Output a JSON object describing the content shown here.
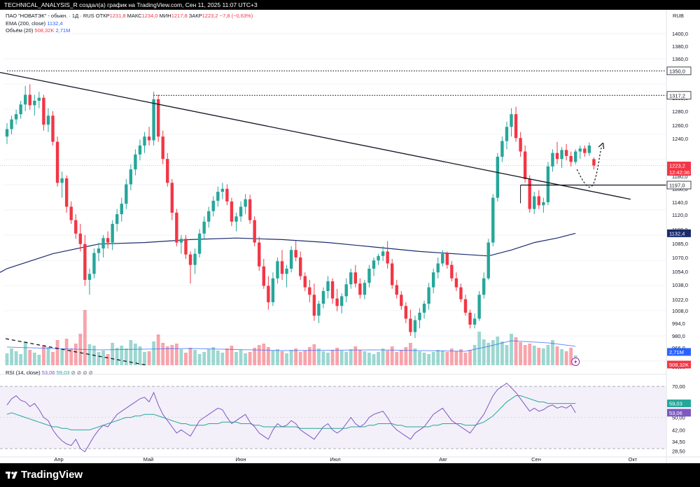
{
  "topbar": "TECHNICAL_ANALYSIS_R создал(а) график на TradingView.com, Сен 11, 2025 11:07 UTC+3",
  "legend": {
    "symbol": "ПАО \"НОВАТЭК\" - обыкн. · 1Д · RUS",
    "open_label": "ОТКР",
    "open": "1231,8",
    "high_label": "МАКС",
    "high": "1234,0",
    "low_label": "МИН",
    "low": "1217,8",
    "close_label": "ЗАКР",
    "close": "1223,2",
    "change": "−7,8 (−0,63%)",
    "ema_label": "EMA (200, close)",
    "ema_value": "1132,4",
    "vol_label": "Объём (20)",
    "vol_value": "508,32K",
    "vol_ma": "2,71M"
  },
  "rsi_legend": {
    "label": "RSI (14, close)",
    "rsi": "53,06",
    "rsi_ma": "59,03"
  },
  "currency": "RUB",
  "footer_brand": "TradingView",
  "colors": {
    "up": "#26a69a",
    "down": "#f23645",
    "ema": "#1a2c6e",
    "rsi": "#7e57c2",
    "rsi_ma": "#26a69a",
    "trend": "#131722"
  },
  "chart_data": {
    "type": "candlestick",
    "price_axis_ticks": [
      "1400,0",
      "1380,0",
      "1360,0",
      "1340,0",
      "1300,0",
      "1280,0",
      "1260,0",
      "1240,0",
      "1200,0",
      "1180,0",
      "1160,0",
      "1140,0",
      "1120,0",
      "1100,0",
      "1085,0",
      "1070,0",
      "1054,0",
      "1038,0",
      "1022,0",
      "1008,0",
      "994,0",
      "980,0",
      "966,0",
      "90,00"
    ],
    "price_labels": [
      {
        "text": "1350,0",
        "kind": "dotted-level"
      },
      {
        "text": "1317,2",
        "kind": "dotted-level"
      },
      {
        "text": "1223,2",
        "sub": "12:42:36",
        "kind": "last-price"
      },
      {
        "text": "1197,0",
        "kind": "support-level"
      },
      {
        "text": "1132,4",
        "kind": "ema"
      },
      {
        "text": "2,71M",
        "kind": "volume-ma"
      },
      {
        "text": "508,32K",
        "kind": "volume"
      }
    ],
    "rsi_axis_ticks": [
      "70,00",
      "50,00",
      "42,00",
      "34,50",
      "28,50"
    ],
    "rsi_labels": [
      {
        "text": "59,03",
        "kind": "rsi-ma"
      },
      {
        "text": "53,06",
        "kind": "rsi"
      }
    ],
    "x_ticks": [
      "Апр",
      "Май",
      "Июн",
      "Июл",
      "Авг",
      "Сен",
      "Окт"
    ],
    "candles": [
      [
        1262,
        1280,
        1252,
        1272
      ],
      [
        1272,
        1290,
        1265,
        1285
      ],
      [
        1285,
        1298,
        1278,
        1292
      ],
      [
        1292,
        1310,
        1286,
        1305
      ],
      [
        1305,
        1330,
        1296,
        1318
      ],
      [
        1318,
        1332,
        1298,
        1304
      ],
      [
        1304,
        1318,
        1290,
        1310
      ],
      [
        1310,
        1322,
        1300,
        1314
      ],
      [
        1314,
        1318,
        1270,
        1278
      ],
      [
        1278,
        1300,
        1268,
        1290
      ],
      [
        1290,
        1296,
        1250,
        1255
      ],
      [
        1255,
        1262,
        1195,
        1200
      ],
      [
        1200,
        1215,
        1180,
        1206
      ],
      [
        1206,
        1210,
        1160,
        1168
      ],
      [
        1168,
        1175,
        1145,
        1150
      ],
      [
        1150,
        1158,
        1125,
        1132
      ],
      [
        1132,
        1145,
        1108,
        1118
      ],
      [
        1118,
        1130,
        1062,
        1070
      ],
      [
        1070,
        1085,
        1050,
        1078
      ],
      [
        1078,
        1112,
        1072,
        1106
      ],
      [
        1106,
        1120,
        1095,
        1112
      ],
      [
        1112,
        1130,
        1100,
        1126
      ],
      [
        1126,
        1135,
        1112,
        1120
      ],
      [
        1120,
        1150,
        1110,
        1145
      ],
      [
        1145,
        1165,
        1135,
        1158
      ],
      [
        1158,
        1180,
        1148,
        1172
      ],
      [
        1172,
        1205,
        1165,
        1198
      ],
      [
        1198,
        1225,
        1190,
        1218
      ],
      [
        1218,
        1245,
        1210,
        1238
      ],
      [
        1238,
        1258,
        1230,
        1250
      ],
      [
        1250,
        1268,
        1240,
        1262
      ],
      [
        1262,
        1275,
        1250,
        1257
      ],
      [
        1257,
        1322,
        1250,
        1312
      ],
      [
        1312,
        1318,
        1255,
        1262
      ],
      [
        1262,
        1270,
        1225,
        1232
      ],
      [
        1232,
        1240,
        1195,
        1200
      ],
      [
        1200,
        1205,
        1150,
        1160
      ],
      [
        1160,
        1165,
        1115,
        1120
      ],
      [
        1120,
        1130,
        1105,
        1125
      ],
      [
        1125,
        1130,
        1098,
        1104
      ],
      [
        1104,
        1108,
        1065,
        1090
      ],
      [
        1090,
        1112,
        1078,
        1105
      ],
      [
        1105,
        1138,
        1100,
        1132
      ],
      [
        1132,
        1155,
        1125,
        1148
      ],
      [
        1148,
        1168,
        1140,
        1162
      ],
      [
        1162,
        1182,
        1155,
        1176
      ],
      [
        1176,
        1195,
        1168,
        1188
      ],
      [
        1188,
        1200,
        1178,
        1192
      ],
      [
        1192,
        1198,
        1170,
        1175
      ],
      [
        1175,
        1180,
        1142,
        1148
      ],
      [
        1148,
        1160,
        1135,
        1155
      ],
      [
        1155,
        1175,
        1148,
        1168
      ],
      [
        1168,
        1185,
        1158,
        1178
      ],
      [
        1178,
        1184,
        1145,
        1150
      ],
      [
        1150,
        1155,
        1115,
        1120
      ],
      [
        1120,
        1128,
        1082,
        1088
      ],
      [
        1088,
        1098,
        1058,
        1062
      ],
      [
        1062,
        1075,
        1030,
        1040
      ],
      [
        1040,
        1080,
        1035,
        1072
      ],
      [
        1072,
        1100,
        1065,
        1095
      ],
      [
        1095,
        1110,
        1070,
        1078
      ],
      [
        1078,
        1090,
        1060,
        1085
      ],
      [
        1085,
        1115,
        1080,
        1110
      ],
      [
        1110,
        1122,
        1095,
        1100
      ],
      [
        1100,
        1108,
        1070,
        1075
      ],
      [
        1075,
        1080,
        1055,
        1060
      ],
      [
        1060,
        1070,
        1040,
        1050
      ],
      [
        1050,
        1065,
        1015,
        1022
      ],
      [
        1022,
        1042,
        1012,
        1038
      ],
      [
        1038,
        1060,
        1032,
        1055
      ],
      [
        1055,
        1075,
        1045,
        1068
      ],
      [
        1068,
        1072,
        1038,
        1045
      ],
      [
        1045,
        1058,
        1028,
        1035
      ],
      [
        1035,
        1052,
        1025,
        1048
      ],
      [
        1048,
        1072,
        1040,
        1064
      ],
      [
        1064,
        1085,
        1058,
        1080
      ],
      [
        1080,
        1090,
        1060,
        1065
      ],
      [
        1065,
        1072,
        1045,
        1050
      ],
      [
        1050,
        1070,
        1044,
        1066
      ],
      [
        1066,
        1090,
        1060,
        1085
      ],
      [
        1085,
        1100,
        1075,
        1096
      ],
      [
        1096,
        1105,
        1090,
        1102
      ],
      [
        1102,
        1115,
        1095,
        1108
      ],
      [
        1108,
        1122,
        1085,
        1092
      ],
      [
        1092,
        1098,
        1058,
        1063
      ],
      [
        1063,
        1070,
        1045,
        1050
      ],
      [
        1050,
        1055,
        1030,
        1035
      ],
      [
        1035,
        1040,
        1012,
        1018
      ],
      [
        1018,
        1030,
        995,
        1000
      ],
      [
        1000,
        1022,
        992,
        1016
      ],
      [
        1016,
        1032,
        1005,
        1026
      ],
      [
        1026,
        1042,
        1018,
        1038
      ],
      [
        1038,
        1066,
        1030,
        1060
      ],
      [
        1060,
        1085,
        1052,
        1080
      ],
      [
        1080,
        1100,
        1072,
        1092
      ],
      [
        1092,
        1110,
        1088,
        1105
      ],
      [
        1105,
        1108,
        1085,
        1090
      ],
      [
        1090,
        1095,
        1068,
        1072
      ],
      [
        1072,
        1080,
        1055,
        1060
      ],
      [
        1060,
        1065,
        1040,
        1044
      ],
      [
        1044,
        1050,
        1022,
        1026
      ],
      [
        1026,
        1030,
        1005,
        1010
      ],
      [
        1010,
        1025,
        1005,
        1018
      ],
      [
        1018,
        1055,
        1015,
        1050
      ],
      [
        1050,
        1080,
        1045,
        1072
      ],
      [
        1072,
        1125,
        1070,
        1120
      ],
      [
        1120,
        1185,
        1115,
        1180
      ],
      [
        1180,
        1240,
        1175,
        1235
      ],
      [
        1235,
        1262,
        1228,
        1256
      ],
      [
        1256,
        1282,
        1245,
        1275
      ],
      [
        1275,
        1300,
        1262,
        1292
      ],
      [
        1292,
        1302,
        1255,
        1260
      ],
      [
        1260,
        1268,
        1235,
        1242
      ],
      [
        1242,
        1250,
        1200,
        1205
      ],
      [
        1205,
        1210,
        1160,
        1165
      ],
      [
        1165,
        1188,
        1158,
        1182
      ],
      [
        1182,
        1190,
        1165,
        1170
      ],
      [
        1170,
        1180,
        1160,
        1174
      ],
      [
        1174,
        1228,
        1170,
        1222
      ],
      [
        1222,
        1245,
        1215,
        1240
      ],
      [
        1240,
        1255,
        1225,
        1232
      ],
      [
        1232,
        1248,
        1220,
        1244
      ],
      [
        1244,
        1252,
        1230,
        1236
      ],
      [
        1236,
        1242,
        1222,
        1228
      ],
      [
        1228,
        1245,
        1225,
        1242
      ],
      [
        1242,
        1250,
        1232,
        1246
      ],
      [
        1246,
        1250,
        1235,
        1240
      ],
      [
        1240,
        1254,
        1236,
        1250
      ],
      [
        1231.8,
        1234,
        1217.8,
        1223.2
      ]
    ],
    "ema200": [
      [
        0,
        1085
      ],
      [
        10,
        1105
      ],
      [
        20,
        1118
      ],
      [
        30,
        1120
      ],
      [
        40,
        1124
      ],
      [
        50,
        1126
      ],
      [
        60,
        1124
      ],
      [
        70,
        1120
      ],
      [
        80,
        1114
      ],
      [
        90,
        1108
      ],
      [
        100,
        1104
      ],
      [
        105,
        1102
      ],
      [
        110,
        1110
      ],
      [
        115,
        1120
      ],
      [
        120,
        1126
      ],
      [
        124,
        1132.4
      ]
    ],
    "volume_bars": [
      1.7,
      2.4,
      2.0,
      1.6,
      3.4,
      2.2,
      1.8,
      1.5,
      2.9,
      2.6,
      1.9,
      3.6,
      2.3,
      3.8,
      2.4,
      3.1,
      4.5,
      7.9,
      3.0,
      2.8,
      1.9,
      2.1,
      1.6,
      3.2,
      2.5,
      2.8,
      2.4,
      3.6,
      3.1,
      2.7,
      1.9,
      2.0,
      3.4,
      4.4,
      3.2,
      2.7,
      2.9,
      3.1,
      2.3,
      1.8,
      2.5,
      2.2,
      1.6,
      1.9,
      2.3,
      2.6,
      2.1,
      1.8,
      2.4,
      2.8,
      1.9,
      2.2,
      1.7,
      1.9,
      2.5,
      2.9,
      3.1,
      2.6,
      2.1,
      2.3,
      2.0,
      1.7,
      2.2,
      2.4,
      1.9,
      2.1,
      2.6,
      3.0,
      2.4,
      2.0,
      1.8,
      2.2,
      2.5,
      2.1,
      1.9,
      2.3,
      2.7,
      2.2,
      2.0,
      1.8,
      1.6,
      1.9,
      2.4,
      2.1,
      2.7,
      1.9,
      2.2,
      2.6,
      3.2,
      2.4,
      2.0,
      1.8,
      1.6,
      1.9,
      2.2,
      2.1,
      1.9,
      2.4,
      2.0,
      2.3,
      1.8,
      2.2,
      2.9,
      4.8,
      3.7,
      3.2,
      3.6,
      4.1,
      3.4,
      2.9,
      4.5,
      4.0,
      3.3,
      2.9,
      3.1,
      2.8,
      2.5,
      2.4,
      2.9,
      3.6,
      2.7,
      2.3,
      2.0,
      2.5,
      1.4
    ],
    "volume_ma": [
      [
        0,
        2.6
      ],
      [
        20,
        2.2
      ],
      [
        40,
        2.4
      ],
      [
        60,
        2.1
      ],
      [
        80,
        2.2
      ],
      [
        100,
        2.0
      ],
      [
        105,
        2.7
      ],
      [
        110,
        3.5
      ],
      [
        118,
        3.2
      ],
      [
        124,
        2.71
      ]
    ],
    "trendline_desc": [
      [
        0,
        1348
      ],
      [
        124,
        1195
      ],
      [
        136,
        1178
      ]
    ],
    "dotted_levels": [
      {
        "value": 1350,
        "from": 0
      },
      {
        "value": 1317.2,
        "from": 32
      }
    ],
    "support_level": {
      "value": 1197,
      "from": 112
    },
    "rsi": [
      58,
      62,
      64,
      61,
      60,
      57,
      59,
      55,
      50,
      48,
      42,
      38,
      35,
      33,
      32,
      36,
      30,
      28,
      33,
      38,
      42,
      45,
      44,
      48,
      52,
      54,
      56,
      58,
      60,
      62,
      63,
      60,
      66,
      58,
      52,
      48,
      44,
      40,
      42,
      40,
      38,
      43,
      48,
      50,
      52,
      54,
      56,
      55,
      50,
      46,
      48,
      50,
      52,
      47,
      44,
      40,
      38,
      36,
      42,
      46,
      44,
      45,
      48,
      46,
      42,
      40,
      38,
      36,
      40,
      44,
      46,
      42,
      40,
      42,
      46,
      50,
      46,
      44,
      46,
      50,
      52,
      53,
      54,
      50,
      45,
      42,
      40,
      38,
      36,
      40,
      42,
      44,
      48,
      52,
      54,
      56,
      52,
      48,
      46,
      44,
      42,
      40,
      44,
      48,
      52,
      58,
      64,
      68,
      70,
      72,
      69,
      66,
      62,
      58,
      54,
      56,
      54,
      55,
      57,
      58,
      56,
      57,
      56,
      58,
      53.06
    ],
    "rsi_ma": [
      52,
      53,
      52,
      51,
      50,
      49,
      48,
      47,
      46,
      45,
      44,
      44,
      43,
      43,
      42,
      42,
      42,
      42,
      42,
      43,
      44,
      45,
      46,
      47,
      48,
      49,
      50,
      50,
      51,
      51,
      52,
      52,
      52,
      51,
      50,
      49,
      48,
      47,
      46,
      46,
      45,
      45,
      45,
      45,
      46,
      46,
      46,
      47,
      47,
      47,
      47,
      46,
      46,
      46,
      45,
      45,
      44,
      44,
      44,
      44,
      44,
      44,
      44,
      44,
      43,
      43,
      43,
      43,
      43,
      43,
      43,
      43,
      43,
      43,
      43,
      44,
      44,
      44,
      44,
      45,
      45,
      46,
      46,
      46,
      46,
      45,
      45,
      44,
      44,
      44,
      44,
      44,
      44,
      45,
      45,
      46,
      46,
      46,
      46,
      46,
      45,
      45,
      45,
      46,
      47,
      49,
      51,
      54,
      57,
      60,
      62,
      64,
      64,
      63,
      62,
      61,
      60,
      60,
      59,
      59,
      59,
      59,
      59,
      59,
      59.03
    ],
    "rsi_band": [
      50,
      70
    ]
  }
}
